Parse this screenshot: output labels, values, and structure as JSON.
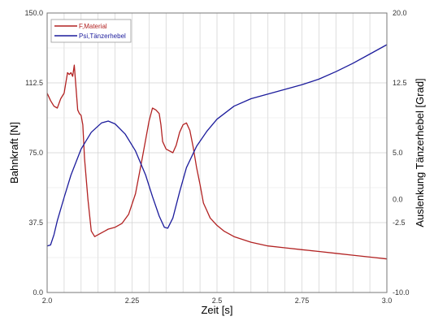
{
  "chart_data": {
    "type": "line",
    "xlabel": "Zeit [s]",
    "ylabel_left": "Bahnkraft  [N]",
    "ylabel_right": "Auslenkung Tänzerhebel  [Grad]",
    "xlim": [
      2.0,
      3.0
    ],
    "ylim_left": [
      0.0,
      150.0
    ],
    "ylim_right": [
      -10.0,
      20.0
    ],
    "x_ticks": [
      "2.0",
      "2.25",
      "2.5",
      "2.75",
      "3.0"
    ],
    "x_tick_values": [
      2.0,
      2.25,
      2.5,
      2.75,
      3.0
    ],
    "y_left_ticks": [
      "0.0",
      "37.5",
      "75.0",
      "112.5",
      "150.0"
    ],
    "y_left_tick_values": [
      0,
      37.5,
      75,
      112.5,
      150
    ],
    "y_right_ticks": [
      "-10.0",
      "-2.5",
      "0.0",
      "5.0",
      "12.5",
      "20.0"
    ],
    "y_right_tick_values": [
      -10,
      -2.5,
      0,
      5,
      12.5,
      20
    ],
    "grid": true,
    "legend_position": "top-left",
    "series": [
      {
        "name": "F,Material",
        "axis": "left",
        "color": "#b22222",
        "x": [
          2.0,
          2.01,
          2.02,
          2.03,
          2.04,
          2.05,
          2.06,
          2.065,
          2.07,
          2.075,
          2.08,
          2.085,
          2.09,
          2.095,
          2.1,
          2.105,
          2.11,
          2.12,
          2.13,
          2.14,
          2.16,
          2.18,
          2.2,
          2.22,
          2.24,
          2.26,
          2.28,
          2.3,
          2.31,
          2.32,
          2.33,
          2.335,
          2.34,
          2.35,
          2.36,
          2.37,
          2.38,
          2.39,
          2.4,
          2.41,
          2.42,
          2.43,
          2.44,
          2.45,
          2.46,
          2.47,
          2.48,
          2.5,
          2.52,
          2.55,
          2.6,
          2.65,
          2.7,
          2.75,
          2.8,
          2.85,
          2.9,
          2.95,
          3.0
        ],
        "values": [
          107,
          103,
          100,
          99,
          104,
          107,
          118,
          117,
          118,
          116,
          122,
          110,
          98,
          96,
          95,
          90,
          72,
          50,
          33,
          30,
          32,
          34,
          35,
          37,
          42,
          53,
          72,
          92,
          99,
          98,
          96,
          90,
          81,
          77,
          76,
          75,
          79,
          86,
          90,
          91,
          87,
          78,
          67,
          58,
          48,
          44,
          40,
          36,
          33,
          30,
          27,
          25,
          24,
          23,
          22,
          21,
          20,
          19,
          18
        ]
      },
      {
        "name": "Psi,Tänzerhebel",
        "axis": "right",
        "color": "#1c1c9c",
        "x": [
          2.0,
          2.01,
          2.02,
          2.03,
          2.05,
          2.07,
          2.1,
          2.13,
          2.16,
          2.18,
          2.2,
          2.23,
          2.26,
          2.29,
          2.31,
          2.33,
          2.345,
          2.355,
          2.37,
          2.39,
          2.41,
          2.44,
          2.47,
          2.5,
          2.55,
          2.6,
          2.65,
          2.7,
          2.75,
          2.8,
          2.85,
          2.9,
          2.95,
          3.0
        ],
        "values": [
          -5,
          -4.9,
          -3.8,
          -2.3,
          0.2,
          2.6,
          5.4,
          7.2,
          8.2,
          8.4,
          8.1,
          7.0,
          5.2,
          2.6,
          0.3,
          -1.8,
          -3.0,
          -3.1,
          -2.0,
          0.8,
          3.4,
          5.7,
          7.3,
          8.6,
          10.0,
          10.8,
          11.3,
          11.8,
          12.3,
          12.9,
          13.7,
          14.6,
          15.6,
          16.6
        ]
      }
    ]
  }
}
